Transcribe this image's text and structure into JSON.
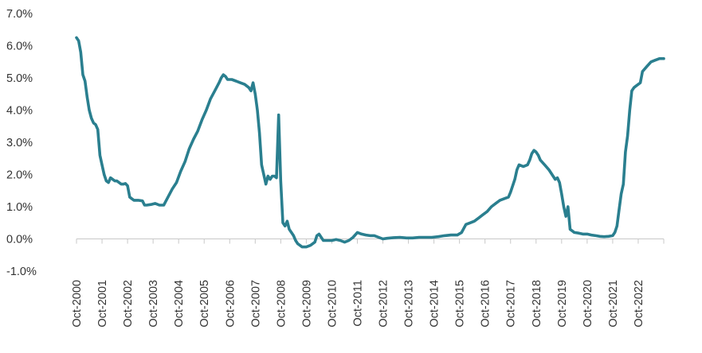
{
  "chart_data": {
    "type": "line",
    "title": "",
    "xlabel": "",
    "ylabel": "",
    "ylim": [
      -1.0,
      7.0
    ],
    "xlim": [
      "2000-10",
      "2023-10"
    ],
    "grid": false,
    "legend": "none",
    "y_ticks": [
      -1.0,
      0.0,
      1.0,
      2.0,
      3.0,
      4.0,
      5.0,
      6.0,
      7.0
    ],
    "y_tick_labels": [
      "-1.0%",
      "0.0%",
      "1.0%",
      "2.0%",
      "3.0%",
      "4.0%",
      "5.0%",
      "6.0%",
      "7.0%"
    ],
    "x_tick_labels": [
      "Oct-2000",
      "Oct-2001",
      "Oct-2002",
      "Oct-2003",
      "Oct-2004",
      "Oct-2005",
      "Oct-2006",
      "Oct-2007",
      "Oct-2008",
      "Oct-2009",
      "Oct-2010",
      "Oct-2011",
      "Oct-2012",
      "Oct-2013",
      "Oct-2014",
      "Oct-2015",
      "Oct-2016",
      "Oct-2017",
      "Oct-2018",
      "Oct-2019",
      "Oct-2020",
      "Oct-2021",
      "Oct-2022"
    ],
    "series": [
      {
        "color": "#2a7f8f",
        "points": [
          [
            "2000-10",
            6.25
          ],
          [
            "2000-11",
            6.15
          ],
          [
            "2000-12",
            5.8
          ],
          [
            "2001-01",
            5.1
          ],
          [
            "2001-02",
            4.9
          ],
          [
            "2001-03",
            4.4
          ],
          [
            "2001-04",
            4.0
          ],
          [
            "2001-05",
            3.75
          ],
          [
            "2001-06",
            3.6
          ],
          [
            "2001-07",
            3.55
          ],
          [
            "2001-08",
            3.4
          ],
          [
            "2001-09",
            2.6
          ],
          [
            "2001-10",
            2.3
          ],
          [
            "2001-11",
            2.0
          ],
          [
            "2001-12",
            1.8
          ],
          [
            "2002-01",
            1.75
          ],
          [
            "2002-02",
            1.9
          ],
          [
            "2002-03",
            1.85
          ],
          [
            "2002-04",
            1.8
          ],
          [
            "2002-05",
            1.8
          ],
          [
            "2002-06",
            1.75
          ],
          [
            "2002-07",
            1.7
          ],
          [
            "2002-08",
            1.7
          ],
          [
            "2002-09",
            1.72
          ],
          [
            "2002-10",
            1.65
          ],
          [
            "2002-11",
            1.3
          ],
          [
            "2002-12",
            1.25
          ],
          [
            "2003-01",
            1.2
          ],
          [
            "2003-03",
            1.2
          ],
          [
            "2003-05",
            1.18
          ],
          [
            "2003-06",
            1.05
          ],
          [
            "2003-07",
            1.05
          ],
          [
            "2003-09",
            1.07
          ],
          [
            "2003-11",
            1.1
          ],
          [
            "2004-01",
            1.05
          ],
          [
            "2004-03",
            1.05
          ],
          [
            "2004-05",
            1.3
          ],
          [
            "2004-07",
            1.55
          ],
          [
            "2004-09",
            1.75
          ],
          [
            "2004-11",
            2.1
          ],
          [
            "2005-01",
            2.4
          ],
          [
            "2005-03",
            2.8
          ],
          [
            "2005-05",
            3.1
          ],
          [
            "2005-07",
            3.35
          ],
          [
            "2005-09",
            3.7
          ],
          [
            "2005-11",
            4.0
          ],
          [
            "2006-01",
            4.35
          ],
          [
            "2006-03",
            4.6
          ],
          [
            "2006-05",
            4.85
          ],
          [
            "2006-06",
            5.0
          ],
          [
            "2006-07",
            5.1
          ],
          [
            "2006-08",
            5.05
          ],
          [
            "2006-09",
            4.95
          ],
          [
            "2006-11",
            4.95
          ],
          [
            "2007-01",
            4.9
          ],
          [
            "2007-03",
            4.85
          ],
          [
            "2007-05",
            4.8
          ],
          [
            "2007-07",
            4.7
          ],
          [
            "2007-08",
            4.6
          ],
          [
            "2007-09",
            4.85
          ],
          [
            "2007-10",
            4.5
          ],
          [
            "2007-11",
            4.0
          ],
          [
            "2007-12",
            3.3
          ],
          [
            "2008-01",
            2.3
          ],
          [
            "2008-02",
            2.0
          ],
          [
            "2008-03",
            1.7
          ],
          [
            "2008-04",
            1.95
          ],
          [
            "2008-05",
            1.85
          ],
          [
            "2008-06",
            1.95
          ],
          [
            "2008-07",
            1.95
          ],
          [
            "2008-08",
            1.9
          ],
          [
            "2008-09",
            3.85
          ],
          [
            "2008-10",
            1.8
          ],
          [
            "2008-11",
            0.5
          ],
          [
            "2008-12",
            0.4
          ],
          [
            "2009-01",
            0.55
          ],
          [
            "2009-02",
            0.3
          ],
          [
            "2009-03",
            0.2
          ],
          [
            "2009-04",
            0.1
          ],
          [
            "2009-05",
            -0.05
          ],
          [
            "2009-06",
            -0.15
          ],
          [
            "2009-08",
            -0.25
          ],
          [
            "2009-10",
            -0.25
          ],
          [
            "2009-12",
            -0.2
          ],
          [
            "2010-02",
            -0.1
          ],
          [
            "2010-03",
            0.1
          ],
          [
            "2010-04",
            0.15
          ],
          [
            "2010-05",
            0.05
          ],
          [
            "2010-06",
            -0.05
          ],
          [
            "2010-08",
            -0.05
          ],
          [
            "2010-10",
            -0.05
          ],
          [
            "2010-12",
            -0.02
          ],
          [
            "2011-02",
            -0.05
          ],
          [
            "2011-04",
            -0.1
          ],
          [
            "2011-06",
            -0.05
          ],
          [
            "2011-08",
            0.05
          ],
          [
            "2011-10",
            0.2
          ],
          [
            "2011-12",
            0.15
          ],
          [
            "2012-02",
            0.12
          ],
          [
            "2012-04",
            0.1
          ],
          [
            "2012-06",
            0.1
          ],
          [
            "2012-08",
            0.05
          ],
          [
            "2012-10",
            0.0
          ],
          [
            "2012-12",
            0.02
          ],
          [
            "2013-03",
            0.04
          ],
          [
            "2013-06",
            0.05
          ],
          [
            "2013-09",
            0.03
          ],
          [
            "2013-12",
            0.03
          ],
          [
            "2014-03",
            0.05
          ],
          [
            "2014-06",
            0.05
          ],
          [
            "2014-09",
            0.05
          ],
          [
            "2014-12",
            0.07
          ],
          [
            "2015-03",
            0.1
          ],
          [
            "2015-06",
            0.12
          ],
          [
            "2015-09",
            0.12
          ],
          [
            "2015-11",
            0.2
          ],
          [
            "2016-01",
            0.45
          ],
          [
            "2016-03",
            0.5
          ],
          [
            "2016-05",
            0.55
          ],
          [
            "2016-07",
            0.65
          ],
          [
            "2016-09",
            0.75
          ],
          [
            "2016-11",
            0.85
          ],
          [
            "2017-01",
            1.0
          ],
          [
            "2017-03",
            1.1
          ],
          [
            "2017-05",
            1.2
          ],
          [
            "2017-07",
            1.25
          ],
          [
            "2017-09",
            1.3
          ],
          [
            "2017-10",
            1.45
          ],
          [
            "2017-12",
            1.85
          ],
          [
            "2018-01",
            2.15
          ],
          [
            "2018-02",
            2.3
          ],
          [
            "2018-04",
            2.25
          ],
          [
            "2018-06",
            2.3
          ],
          [
            "2018-07",
            2.45
          ],
          [
            "2018-08",
            2.65
          ],
          [
            "2018-09",
            2.75
          ],
          [
            "2018-10",
            2.7
          ],
          [
            "2018-11",
            2.6
          ],
          [
            "2018-12",
            2.45
          ],
          [
            "2019-02",
            2.3
          ],
          [
            "2019-04",
            2.15
          ],
          [
            "2019-06",
            1.95
          ],
          [
            "2019-07",
            1.85
          ],
          [
            "2019-08",
            1.9
          ],
          [
            "2019-09",
            1.75
          ],
          [
            "2019-10",
            1.4
          ],
          [
            "2019-11",
            1.0
          ],
          [
            "2019-12",
            0.7
          ],
          [
            "2020-01",
            1.0
          ],
          [
            "2020-02",
            0.3
          ],
          [
            "2020-03",
            0.25
          ],
          [
            "2020-04",
            0.2
          ],
          [
            "2020-06",
            0.18
          ],
          [
            "2020-08",
            0.15
          ],
          [
            "2020-10",
            0.15
          ],
          [
            "2020-12",
            0.12
          ],
          [
            "2021-02",
            0.1
          ],
          [
            "2021-04",
            0.08
          ],
          [
            "2021-06",
            0.07
          ],
          [
            "2021-08",
            0.08
          ],
          [
            "2021-10",
            0.1
          ],
          [
            "2021-11",
            0.2
          ],
          [
            "2021-12",
            0.4
          ],
          [
            "2022-01",
            0.9
          ],
          [
            "2022-02",
            1.4
          ],
          [
            "2022-03",
            1.7
          ],
          [
            "2022-04",
            2.7
          ],
          [
            "2022-05",
            3.2
          ],
          [
            "2022-06",
            4.0
          ],
          [
            "2022-07",
            4.6
          ],
          [
            "2022-08",
            4.7
          ],
          [
            "2022-09",
            4.75
          ],
          [
            "2022-10",
            4.8
          ],
          [
            "2022-11",
            4.85
          ],
          [
            "2022-12",
            5.2
          ],
          [
            "2023-02",
            5.35
          ],
          [
            "2023-04",
            5.5
          ],
          [
            "2023-06",
            5.55
          ],
          [
            "2023-08",
            5.6
          ],
          [
            "2023-10",
            5.6
          ]
        ]
      }
    ]
  }
}
